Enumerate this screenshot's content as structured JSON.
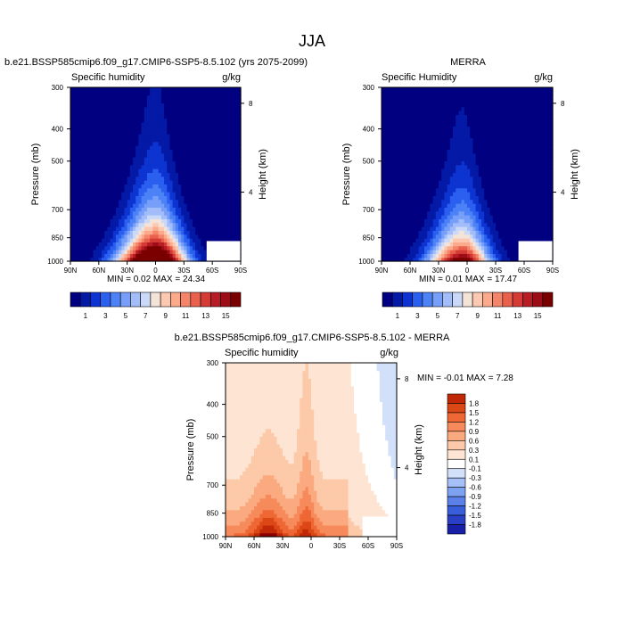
{
  "figure_title": "JJA",
  "colors": {
    "colorbar_full": [
      "#000080",
      "#0419a6",
      "#0d34d0",
      "#2a5ff0",
      "#4d82f7",
      "#779ff9",
      "#a2bdfa",
      "#cbd9f9",
      "#f4e3d7",
      "#fcc8b1",
      "#fbaa8c",
      "#f5856a",
      "#e9604d",
      "#d43a36",
      "#b81c25",
      "#9c0d17",
      "#7a0000"
    ],
    "colorbar_diff": [
      "#00008f",
      "#1820a8",
      "#2a40c4",
      "#3a5ed9",
      "#5b80ea",
      "#7ea2f2",
      "#a6c0f7",
      "#d2e0fa",
      "#ffffff",
      "#fde4d3",
      "#fcc9a9",
      "#fbaa80",
      "#f78a5a",
      "#ee6734",
      "#dc4716",
      "#c12807",
      "#8c0000"
    ]
  },
  "panels": [
    {
      "id": "model",
      "title": "b.e21.BSSP585cmip6.f09_g17.CMIP6-SSP5-8.5.102 (yrs 2075-2099)",
      "left_label": "Specific humidity",
      "right_label": "g/kg",
      "stats": "MIN =   0.02  MAX =  24.34"
    },
    {
      "id": "obs",
      "title": "MERRA",
      "left_label": "Specific Humidity",
      "right_label": "g/kg",
      "stats": "MIN =   0.01  MAX =  17.47"
    },
    {
      "id": "diff",
      "title": "b.e21.BSSP585cmip6.f09_g17.CMIP6-SSP5-8.5.102 - MERRA",
      "left_label": "Specific humidity",
      "right_label": "g/kg",
      "stats": "MIN =  -0.01  MAX =   7.28"
    }
  ],
  "chart_data": [
    {
      "type": "heatmap",
      "panel": "model",
      "title": "b.e21.BSSP585cmip6.f09_g17.CMIP6-SSP5-8.5.102 (yrs 2075-2099)",
      "xlabel": "",
      "ylabel": "Pressure (mb)",
      "ylabel_right": "Height (km)",
      "x_ticks": [
        "90N",
        "60N",
        "30N",
        "0",
        "30S",
        "60S",
        "90S"
      ],
      "x_range": [
        90,
        -90
      ],
      "y_ticks": [
        300,
        400,
        500,
        700,
        850,
        1000
      ],
      "y_range": [
        1000,
        300
      ],
      "y_right_ticks": [
        "8",
        "4"
      ],
      "y_right_tick_pressures": [
        335,
        620
      ],
      "min": 0.02,
      "max": 24.34,
      "units": "g/kg",
      "colorbar_labels": [
        "1",
        "3",
        "5",
        "7",
        "9",
        "11",
        "13",
        "15"
      ],
      "shape": {
        "peak_lat": 0,
        "peak_value": 24.34,
        "tropopause_peak_p": 300,
        "width_deg": 38,
        "hemisphere_asymmetry": "south drier"
      }
    },
    {
      "type": "heatmap",
      "panel": "obs",
      "title": "MERRA",
      "xlabel": "",
      "ylabel": "Pressure (mb)",
      "ylabel_right": "Height (km)",
      "x_ticks": [
        "90N",
        "60N",
        "30N",
        "0",
        "30S",
        "60S",
        "90S"
      ],
      "x_range": [
        90,
        -90
      ],
      "y_ticks": [
        300,
        400,
        500,
        700,
        850,
        1000
      ],
      "y_range": [
        1000,
        300
      ],
      "y_right_ticks": [
        "8",
        "4"
      ],
      "y_right_tick_pressures": [
        335,
        620
      ],
      "min": 0.01,
      "max": 17.47,
      "units": "g/kg",
      "colorbar_labels": [
        "1",
        "3",
        "5",
        "7",
        "9",
        "11",
        "13",
        "15"
      ],
      "shape": {
        "peak_lat": 5,
        "peak_value": 17.47,
        "tropopause_peak_p": 330,
        "width_deg": 34,
        "hemisphere_asymmetry": "south drier"
      }
    },
    {
      "type": "heatmap",
      "panel": "diff",
      "title": "b.e21.BSSP585cmip6.f09_g17.CMIP6-SSP5-8.5.102 - MERRA",
      "xlabel": "",
      "ylabel": "Pressure (mb)",
      "ylabel_right": "Height (km)",
      "x_ticks": [
        "90N",
        "60N",
        "30N",
        "0",
        "30S",
        "60S",
        "90S"
      ],
      "x_range": [
        90,
        -90
      ],
      "y_ticks": [
        300,
        400,
        500,
        700,
        850,
        1000
      ],
      "y_range": [
        1000,
        300
      ],
      "y_right_ticks": [
        "8",
        "4"
      ],
      "y_right_tick_pressures": [
        335,
        620
      ],
      "min": -0.01,
      "max": 7.28,
      "units": "g/kg",
      "colorbar_labels": [
        "1.8",
        "1.5",
        "1.2",
        "0.9",
        "0.6",
        "0.3",
        "0.1",
        "-0.1",
        "-0.3",
        "-0.6",
        "-0.9",
        "-1.2",
        "-1.5",
        "-1.8"
      ]
    }
  ]
}
